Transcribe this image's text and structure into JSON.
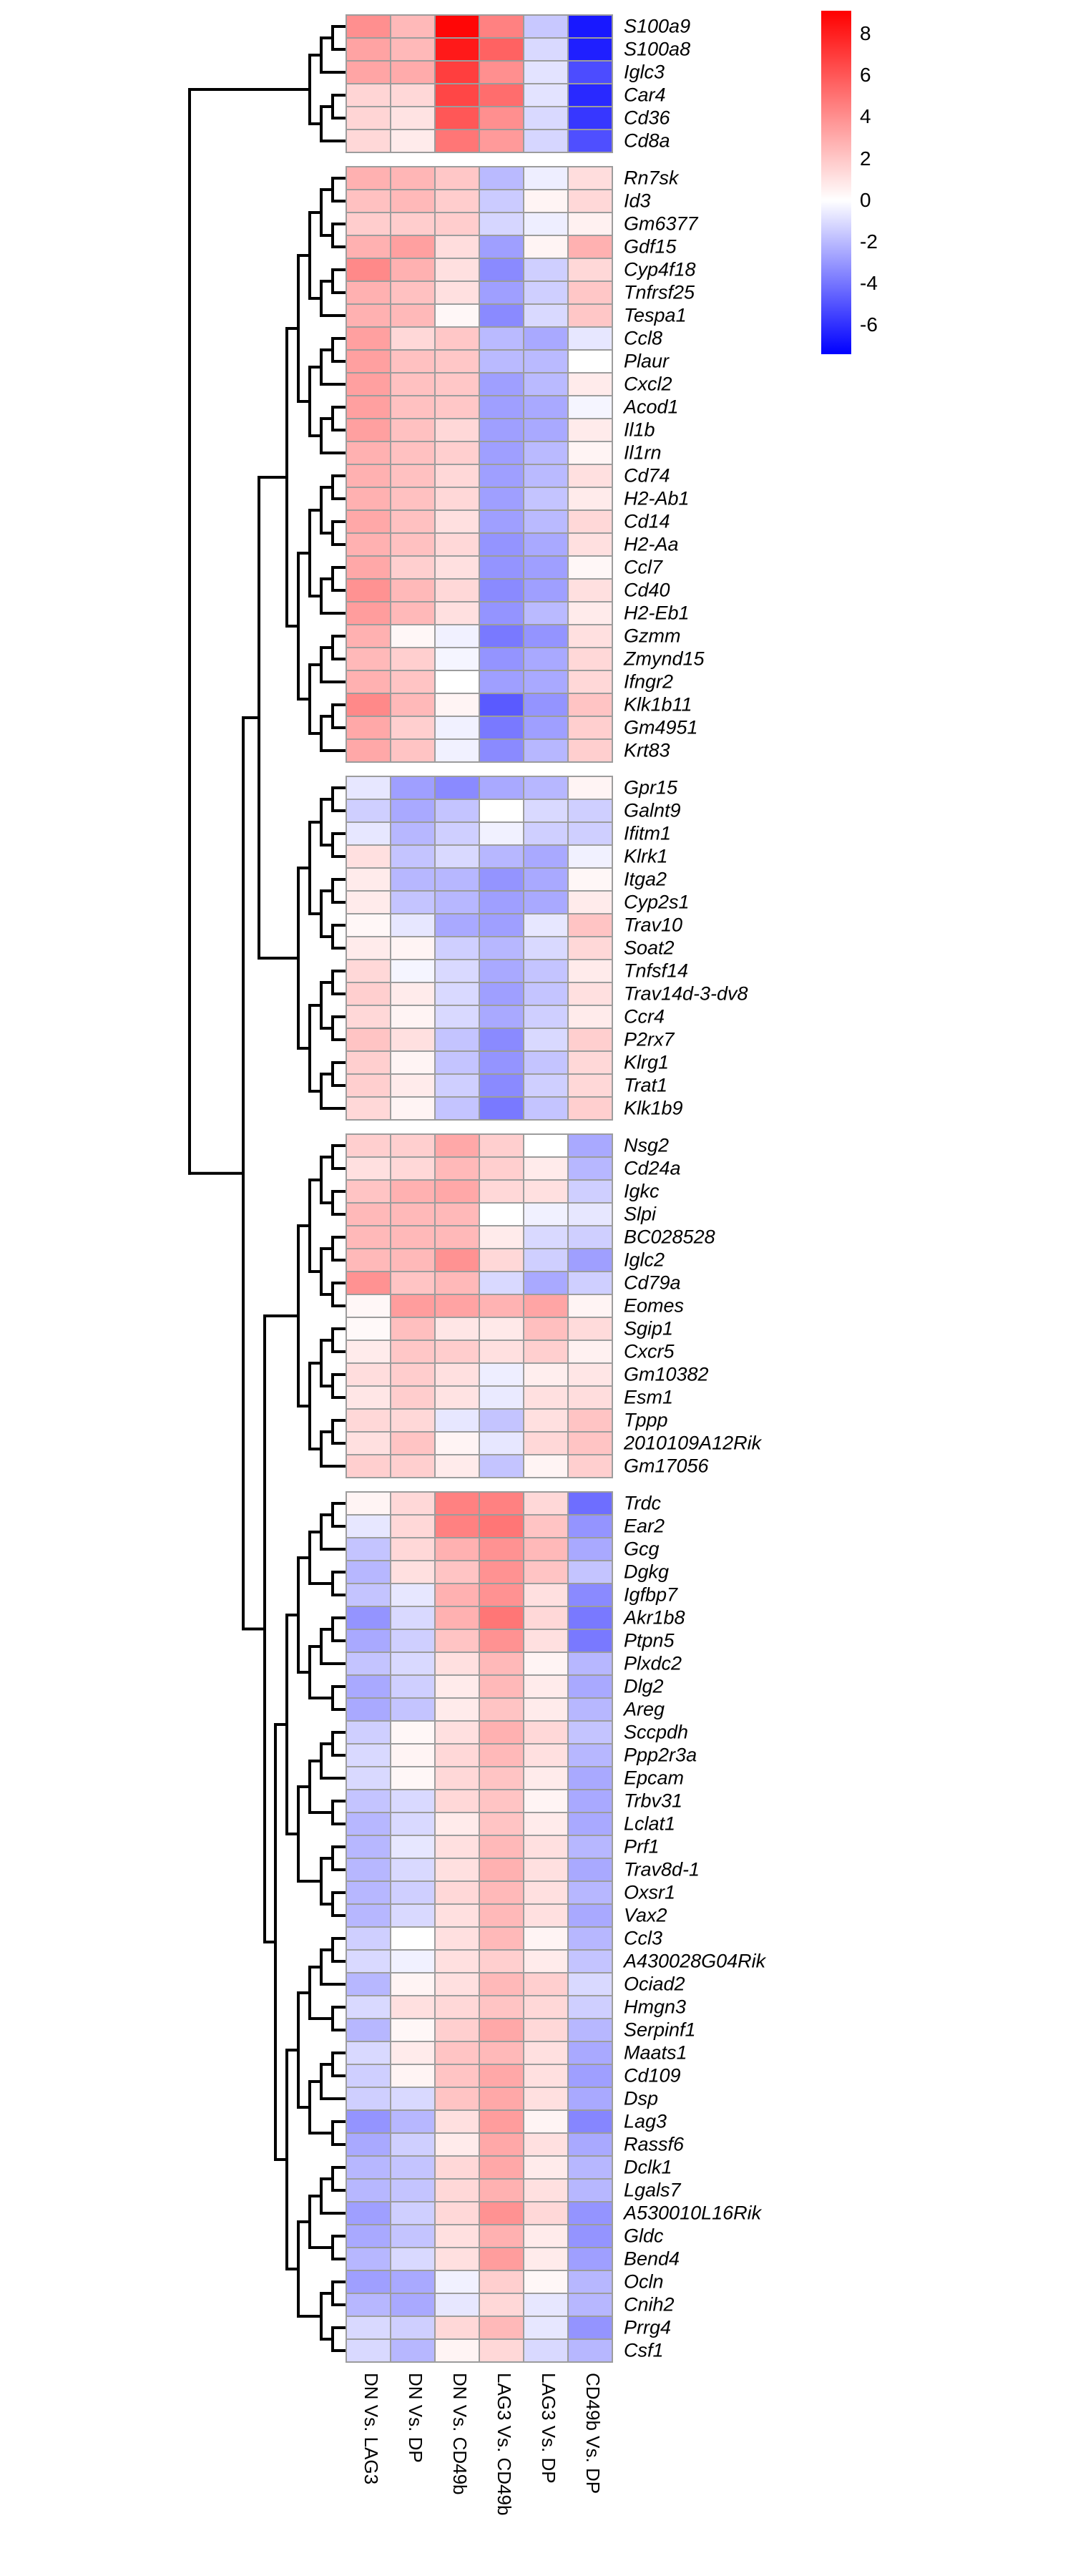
{
  "chart_data": {
    "type": "heatmap",
    "title": "",
    "columns": [
      "DN Vs. LAG3",
      "DN Vs. DP",
      "DN Vs. CD49b",
      "LAG3 Vs. CD49b",
      "LAG3 Vs. DP",
      "CD49b Vs. DP"
    ],
    "legend_position": "right",
    "colorbar": {
      "ticks": [
        8,
        6,
        4,
        2,
        0,
        -2,
        -4,
        -6
      ],
      "vmax": 9.1,
      "vmin": -7.4,
      "color_max": "#FF0000",
      "color_mid": "#FFFFFF",
      "color_min": "#0000FF"
    },
    "cell_border_color": "#9C9C9C",
    "dendrogram_color": "#000000",
    "row_blocks": [
      {
        "genes": [
          "S100a9",
          "S100a8",
          "Iglc3",
          "Car4",
          "Cd36",
          "Cd8a"
        ],
        "values": [
          [
            4.0,
            2.5,
            8.9,
            4.5,
            -1.6,
            -6.7
          ],
          [
            3.3,
            2.5,
            8.2,
            5.6,
            -1.1,
            -6.5
          ],
          [
            3.2,
            3.0,
            6.9,
            4.0,
            -0.8,
            -5.2
          ],
          [
            1.5,
            1.4,
            6.6,
            5.2,
            -0.8,
            -6.2
          ],
          [
            1.5,
            1.0,
            6.0,
            4.0,
            -1.1,
            -5.8
          ],
          [
            1.4,
            0.7,
            4.9,
            3.6,
            -1.2,
            -5.1
          ]
        ]
      },
      {
        "genes": [
          "Rn7sk",
          "Id3",
          "Gm6377",
          "Gdf15",
          "Cyp4f18",
          "Tnfrsf25",
          "Tespa1",
          "Ccl8",
          "Plaur",
          "Cxcl2",
          "Acod1",
          "Il1b",
          "Il1rn",
          "Cd74",
          "H2-Ab1",
          "Cd14",
          "H2-Aa",
          "Ccl7",
          "Cd40",
          "H2-Eb1",
          "Gzmm",
          "Zmynd15",
          "Ifngr2",
          "Klk1b11",
          "Gm4951",
          "Krt83"
        ],
        "values": [
          [
            2.8,
            2.6,
            2.0,
            -2.0,
            -0.5,
            1.2
          ],
          [
            2.2,
            2.5,
            1.8,
            -1.5,
            0.4,
            1.4
          ],
          [
            1.8,
            1.8,
            1.8,
            -1.2,
            -0.5,
            0.5
          ],
          [
            2.8,
            3.4,
            1.2,
            -2.8,
            0.4,
            2.8
          ],
          [
            4.2,
            2.8,
            1.1,
            -3.4,
            -1.4,
            1.4
          ],
          [
            2.8,
            2.2,
            1.1,
            -2.8,
            -1.4,
            2.0
          ],
          [
            2.8,
            2.5,
            0.3,
            -3.4,
            -1.1,
            2.0
          ],
          [
            3.4,
            1.4,
            2.0,
            -2.0,
            -2.5,
            -0.7
          ],
          [
            3.4,
            2.2,
            2.0,
            -2.0,
            -2.0,
            0.0
          ],
          [
            3.4,
            2.2,
            2.0,
            -2.8,
            -2.0,
            0.7
          ],
          [
            3.4,
            2.2,
            2.0,
            -2.8,
            -2.5,
            -0.3
          ],
          [
            3.4,
            2.2,
            1.4,
            -2.8,
            -2.5,
            0.7
          ],
          [
            2.8,
            2.2,
            1.7,
            -2.8,
            -2.0,
            0.4
          ],
          [
            2.8,
            2.2,
            1.4,
            -2.8,
            -2.0,
            1.1
          ],
          [
            2.8,
            2.2,
            1.4,
            -2.8,
            -1.7,
            0.7
          ],
          [
            3.1,
            2.2,
            1.1,
            -2.8,
            -2.0,
            1.4
          ],
          [
            2.8,
            2.2,
            1.4,
            -3.1,
            -2.5,
            1.1
          ],
          [
            3.1,
            1.7,
            1.1,
            -3.1,
            -2.8,
            0.3
          ],
          [
            3.9,
            2.5,
            1.4,
            -3.4,
            -2.8,
            1.1
          ],
          [
            3.5,
            2.5,
            1.1,
            -3.1,
            -2.0,
            0.7
          ],
          [
            2.8,
            0.3,
            -0.4,
            -3.9,
            -3.1,
            1.1
          ],
          [
            2.5,
            1.7,
            -0.3,
            -3.1,
            -2.5,
            1.4
          ],
          [
            2.8,
            2.1,
            0.0,
            -2.8,
            -2.5,
            1.4
          ],
          [
            4.2,
            2.5,
            0.4,
            -4.8,
            -3.1,
            2.1
          ],
          [
            3.1,
            1.7,
            -0.4,
            -3.9,
            -2.8,
            1.7
          ],
          [
            3.1,
            2.1,
            -0.4,
            -3.4,
            -2.1,
            1.7
          ]
        ]
      },
      {
        "genes": [
          "Gpr15",
          "Galnt9",
          "Ifitm1",
          "Klrk1",
          "Itga2",
          "Cyp2s1",
          "Trav10",
          "Soat2",
          "Tnfsf14",
          "Trav14d-3-dv8",
          "Ccr4",
          "P2rx7",
          "Klrg1",
          "Trat1",
          "Klk1b9"
        ],
        "values": [
          [
            -0.7,
            -2.8,
            -3.4,
            -2.5,
            -2.1,
            0.4
          ],
          [
            -1.4,
            -2.5,
            -1.7,
            0.0,
            -1.1,
            -1.4
          ],
          [
            -0.7,
            -2.1,
            -1.4,
            -0.4,
            -1.4,
            -1.4
          ],
          [
            1.1,
            -1.7,
            -1.1,
            -2.1,
            -2.5,
            -0.4
          ],
          [
            0.7,
            -2.1,
            -2.1,
            -3.1,
            -2.5,
            0.3
          ],
          [
            0.7,
            -1.7,
            -2.1,
            -2.8,
            -2.5,
            0.7
          ],
          [
            0.3,
            -0.7,
            -2.5,
            -2.8,
            -0.7,
            2.1
          ],
          [
            0.7,
            0.4,
            -1.4,
            -2.1,
            -1.1,
            1.4
          ],
          [
            1.4,
            -0.3,
            -1.1,
            -2.5,
            -1.7,
            0.7
          ],
          [
            1.7,
            0.7,
            -1.1,
            -2.8,
            -1.7,
            1.1
          ],
          [
            1.4,
            0.4,
            -1.1,
            -2.5,
            -1.4,
            0.7
          ],
          [
            2.1,
            1.1,
            -1.7,
            -3.4,
            -1.1,
            1.7
          ],
          [
            1.7,
            0.4,
            -1.7,
            -3.1,
            -1.7,
            1.4
          ],
          [
            1.7,
            0.7,
            -1.4,
            -3.4,
            -1.4,
            1.4
          ],
          [
            1.4,
            0.4,
            -1.7,
            -3.9,
            -1.7,
            1.7
          ]
        ]
      },
      {
        "genes": [
          "Nsg2",
          "Cd24a",
          "Igkc",
          "Slpi",
          "BC028528",
          "Iglc2",
          "Cd79a",
          "Eomes",
          "Sgip1",
          "Cxcr5",
          "Gm10382",
          "Esm1",
          "Tppp",
          "2010109A12Rik",
          "Gm17056"
        ],
        "values": [
          [
            1.7,
            1.7,
            3.1,
            1.7,
            0.0,
            -2.5
          ],
          [
            1.1,
            1.4,
            2.5,
            1.7,
            0.7,
            -2.1
          ],
          [
            2.1,
            2.8,
            3.1,
            1.4,
            1.1,
            -1.4
          ],
          [
            2.5,
            2.5,
            2.5,
            0.0,
            -0.4,
            -0.7
          ],
          [
            2.5,
            2.5,
            2.5,
            0.7,
            -1.1,
            -1.4
          ],
          [
            2.5,
            2.5,
            3.9,
            1.4,
            -1.4,
            -2.8
          ],
          [
            3.9,
            2.1,
            2.5,
            -1.1,
            -2.5,
            -1.4
          ],
          [
            0.3,
            3.5,
            3.3,
            2.7,
            3.2,
            0.4
          ],
          [
            0.2,
            2.3,
            0.9,
            0.8,
            2.3,
            1.3
          ],
          [
            0.7,
            2.0,
            1.8,
            1.1,
            1.7,
            0.5
          ],
          [
            1.2,
            1.8,
            1.1,
            -0.5,
            0.6,
            0.9
          ],
          [
            0.9,
            1.8,
            1.0,
            -0.6,
            1.1,
            1.2
          ],
          [
            1.4,
            1.4,
            -0.7,
            -1.7,
            1.1,
            2.1
          ],
          [
            1.1,
            2.1,
            0.4,
            -0.7,
            1.4,
            2.1
          ],
          [
            1.7,
            1.7,
            0.7,
            -1.7,
            0.4,
            1.7
          ]
        ]
      },
      {
        "genes": [
          "Trdc",
          "Ear2",
          "Gcg",
          "Dgkg",
          "Igfbp7",
          "Akr1b8",
          "Ptpn5",
          "Plxdc2",
          "Dlg2",
          "Areg",
          "Sccpdh",
          "Ppp2r3a",
          "Epcam",
          "Trbv31",
          "Lclat1",
          "Prf1",
          "Trav8d-1",
          "Oxsr1",
          "Vax2",
          "Ccl3",
          "A430028G04Rik",
          "Ociad2",
          "Hmgn3",
          "Serpinf1",
          "Maats1",
          "Cd109",
          "Dsp",
          "Lag3",
          "Rassf6",
          "Dclk1",
          "Lgals7",
          "A530010L16Rik",
          "Gldc",
          "Bend4",
          "Ocln",
          "Cnih2",
          "Prrg4",
          "Csf1"
        ],
        "values": [
          [
            0.4,
            1.4,
            4.5,
            4.5,
            1.4,
            -4.2
          ],
          [
            -0.7,
            1.4,
            4.5,
            4.9,
            2.1,
            -3.1
          ],
          [
            -1.7,
            1.4,
            2.8,
            3.9,
            2.5,
            -2.5
          ],
          [
            -2.1,
            1.1,
            2.1,
            3.9,
            2.1,
            -1.7
          ],
          [
            -1.7,
            -0.7,
            2.8,
            3.9,
            1.1,
            -3.4
          ],
          [
            -3.1,
            -1.1,
            2.8,
            4.9,
            1.4,
            -3.9
          ],
          [
            -2.5,
            -1.4,
            2.1,
            3.9,
            1.1,
            -3.9
          ],
          [
            -1.7,
            -1.1,
            1.1,
            2.5,
            0.4,
            -2.1
          ],
          [
            -2.5,
            -1.4,
            0.7,
            2.5,
            0.7,
            -2.5
          ],
          [
            -2.5,
            -1.7,
            0.7,
            2.1,
            0.7,
            -2.1
          ],
          [
            -1.4,
            0.3,
            1.1,
            2.8,
            1.4,
            -1.7
          ],
          [
            -1.1,
            0.4,
            1.4,
            2.5,
            1.1,
            -2.1
          ],
          [
            -1.1,
            0.3,
            1.4,
            2.1,
            0.7,
            -2.5
          ],
          [
            -1.7,
            -1.1,
            1.4,
            2.1,
            0.4,
            -2.5
          ],
          [
            -2.1,
            -1.1,
            0.7,
            2.1,
            0.7,
            -2.5
          ],
          [
            -2.1,
            -0.7,
            1.1,
            2.5,
            1.1,
            -2.1
          ],
          [
            -2.1,
            -1.1,
            1.1,
            2.8,
            1.1,
            -2.5
          ],
          [
            -2.1,
            -1.4,
            1.4,
            2.5,
            1.1,
            -2.1
          ],
          [
            -2.1,
            -1.1,
            1.1,
            2.5,
            1.1,
            -2.5
          ],
          [
            -1.4,
            0.0,
            1.1,
            2.5,
            0.4,
            -2.1
          ],
          [
            -1.1,
            -0.4,
            1.1,
            1.7,
            0.7,
            -1.7
          ],
          [
            -2.1,
            0.4,
            1.1,
            2.5,
            1.7,
            -1.1
          ],
          [
            -1.1,
            1.1,
            1.4,
            2.1,
            1.4,
            -1.4
          ],
          [
            -2.1,
            0.3,
            1.7,
            3.1,
            1.4,
            -2.1
          ],
          [
            -1.1,
            0.7,
            2.1,
            2.5,
            1.1,
            -2.5
          ],
          [
            -1.4,
            0.4,
            2.1,
            3.1,
            1.1,
            -2.8
          ],
          [
            -1.4,
            -1.1,
            2.1,
            3.1,
            1.1,
            -2.5
          ],
          [
            -3.1,
            -2.1,
            1.1,
            3.5,
            0.4,
            -3.5
          ],
          [
            -2.5,
            -1.4,
            0.7,
            3.1,
            1.1,
            -2.5
          ],
          [
            -2.1,
            -1.7,
            1.4,
            3.1,
            0.7,
            -2.1
          ],
          [
            -2.1,
            -1.7,
            1.4,
            2.8,
            1.1,
            -2.1
          ],
          [
            -2.8,
            -1.4,
            1.4,
            3.9,
            1.4,
            -3.1
          ],
          [
            -2.5,
            -1.7,
            1.1,
            2.8,
            0.7,
            -3.1
          ],
          [
            -2.1,
            -1.1,
            1.1,
            3.5,
            0.7,
            -2.8
          ],
          [
            -2.8,
            -2.5,
            -0.4,
            1.7,
            0.3,
            -2.1
          ],
          [
            -2.1,
            -2.5,
            -0.7,
            1.4,
            -0.7,
            -2.1
          ],
          [
            -1.1,
            -1.4,
            1.4,
            2.5,
            -0.7,
            -3.1
          ],
          [
            -1.1,
            -2.1,
            0.4,
            1.4,
            -1.1,
            -2.1
          ]
        ]
      }
    ]
  }
}
